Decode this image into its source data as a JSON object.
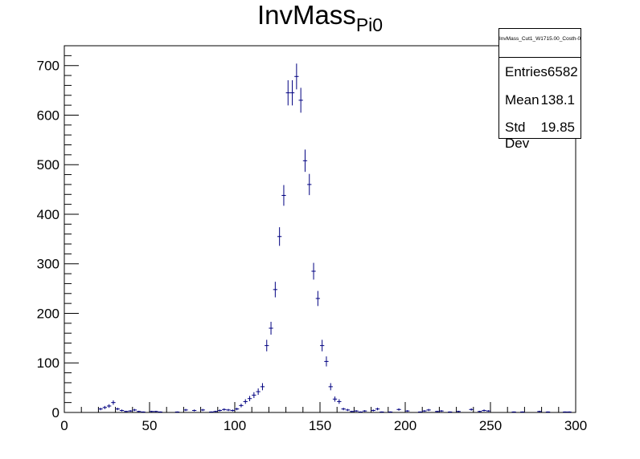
{
  "title": {
    "main": "InvMass",
    "sub": "Pi0"
  },
  "stats": {
    "name": "InvMass_Cut1_W1715.00_Costh-0.50_Pol0.50_",
    "rows": [
      {
        "label": "Entries",
        "value": "6582"
      },
      {
        "label": "Mean",
        "value": "138.1"
      },
      {
        "label": "Std Dev",
        "value": "19.85"
      }
    ]
  },
  "colors": {
    "series": "#000080",
    "frame": "#000000"
  },
  "chart_data": {
    "type": "scatter",
    "title": "InvMass_Pi0",
    "xlabel": "",
    "ylabel": "",
    "xlim": [
      0,
      300
    ],
    "ylim": [
      0,
      740
    ],
    "grid": false,
    "legend": "none",
    "x_ticks": [
      0,
      50,
      100,
      150,
      200,
      250,
      300
    ],
    "y_ticks": [
      0,
      100,
      200,
      300,
      400,
      500,
      600,
      700
    ],
    "x_tick_labels": [
      "0",
      "50",
      "100",
      "150",
      "200",
      "250",
      "300"
    ],
    "y_tick_labels": [
      "0",
      "100",
      "200",
      "300",
      "400",
      "500",
      "600",
      "700"
    ],
    "series": [
      {
        "bin_width": 2.5,
        "x": [
          21.25,
          23.75,
          26.25,
          28.75,
          31.25,
          33.75,
          36.25,
          38.75,
          41.25,
          43.75,
          46.25,
          51.25,
          53.75,
          56.25,
          66.25,
          71.25,
          76.25,
          81.25,
          86.25,
          88.75,
          91.25,
          93.75,
          96.25,
          98.75,
          101.25,
          103.75,
          106.25,
          108.75,
          111.25,
          113.75,
          116.25,
          118.75,
          121.25,
          123.75,
          126.25,
          128.75,
          131.25,
          133.75,
          136.25,
          138.75,
          141.25,
          143.75,
          146.25,
          148.75,
          151.25,
          153.75,
          156.25,
          158.75,
          161.25,
          163.75,
          166.25,
          168.75,
          171.25,
          173.75,
          176.25,
          181.25,
          183.75,
          186.25,
          191.25,
          196.25,
          201.25,
          208.75,
          211.25,
          213.75,
          218.75,
          221.25,
          226.25,
          231.25,
          238.75,
          243.75,
          246.25,
          248.75,
          263.75,
          268.75,
          278.75,
          283.75,
          293.75,
          296.25
        ],
        "y": [
          7,
          10,
          13,
          20,
          7,
          4,
          2,
          3,
          5,
          2,
          1,
          2,
          2,
          1,
          1,
          5,
          4,
          5,
          1,
          2,
          4,
          6,
          5,
          4,
          7,
          14,
          22,
          28,
          35,
          42,
          52,
          135,
          170,
          248,
          355,
          438,
          645,
          645,
          678,
          630,
          508,
          460,
          285,
          230,
          135,
          103,
          52,
          27,
          22,
          7,
          5,
          2,
          3,
          1,
          3,
          4,
          7,
          1,
          1,
          6,
          3,
          1,
          3,
          5,
          2,
          3,
          1,
          2,
          6,
          2,
          4,
          3,
          1,
          1,
          2,
          1,
          1,
          1
        ],
        "errors": [
          2.6,
          3.2,
          3.6,
          4.5,
          2.6,
          2,
          1.4,
          1.7,
          2.2,
          1.4,
          1,
          1.4,
          1.4,
          1,
          1,
          2.2,
          2,
          2.2,
          1,
          1.4,
          2,
          2.4,
          2.2,
          2,
          2.6,
          3.7,
          4.7,
          5.3,
          5.9,
          6.5,
          7.2,
          11.6,
          13,
          15.7,
          18.8,
          20.9,
          25.4,
          25.4,
          26,
          25.1,
          22.5,
          21.4,
          16.9,
          15.2,
          11.6,
          10.1,
          7.2,
          5.2,
          4.7,
          2.6,
          2.2,
          1.4,
          1.7,
          1,
          1.7,
          2,
          2.6,
          1,
          1,
          2.4,
          1.7,
          1,
          1.7,
          2.2,
          1.4,
          1.7,
          1,
          1.4,
          2.4,
          1.4,
          2,
          1.7,
          1,
          1,
          1.4,
          1,
          1,
          1
        ]
      }
    ]
  }
}
